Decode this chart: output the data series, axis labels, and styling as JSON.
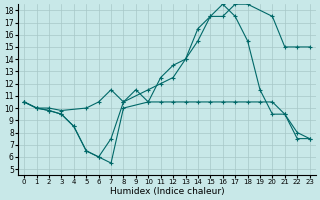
{
  "xlabel": "Humidex (Indice chaleur)",
  "bg_color": "#c8e8e8",
  "grid_color": "#a8c8c8",
  "line_color": "#006868",
  "xlim": [
    -0.5,
    23.5
  ],
  "ylim": [
    4.5,
    18.5
  ],
  "xticks": [
    0,
    1,
    2,
    3,
    4,
    5,
    6,
    7,
    8,
    9,
    10,
    11,
    12,
    13,
    14,
    15,
    16,
    17,
    18,
    19,
    20,
    21,
    22,
    23
  ],
  "yticks": [
    5,
    6,
    7,
    8,
    9,
    10,
    11,
    12,
    13,
    14,
    15,
    16,
    17,
    18
  ],
  "line1_x": [
    0,
    1,
    2,
    3,
    4,
    5,
    6,
    7,
    8,
    9,
    10,
    11,
    12,
    13,
    14,
    15,
    16,
    17,
    18,
    19,
    20,
    21,
    22,
    23
  ],
  "line1_y": [
    10.5,
    10.0,
    9.8,
    9.5,
    8.5,
    6.5,
    6.0,
    7.5,
    10.5,
    11.5,
    10.5,
    10.5,
    10.5,
    10.5,
    10.5,
    10.5,
    10.5,
    10.5,
    10.5,
    10.5,
    10.5,
    9.5,
    8.0,
    7.5
  ],
  "line2_x": [
    0,
    1,
    2,
    3,
    5,
    6,
    7,
    8,
    10,
    11,
    12,
    13,
    14,
    15,
    16,
    17,
    18,
    20,
    21,
    22,
    23
  ],
  "line2_y": [
    10.5,
    10.0,
    10.0,
    9.8,
    10.0,
    10.5,
    11.5,
    10.5,
    11.5,
    12.0,
    12.5,
    14.0,
    15.5,
    17.5,
    17.5,
    18.5,
    18.5,
    17.5,
    15.0,
    15.0,
    15.0
  ],
  "line3_x": [
    0,
    1,
    2,
    3,
    4,
    5,
    6,
    7,
    8,
    10,
    11,
    12,
    13,
    14,
    15,
    16,
    17,
    18,
    19,
    20,
    21,
    22,
    23
  ],
  "line3_y": [
    10.5,
    10.0,
    9.8,
    9.5,
    8.5,
    6.5,
    6.0,
    5.5,
    10.0,
    10.5,
    12.5,
    13.5,
    14.0,
    16.5,
    17.5,
    18.5,
    17.5,
    15.5,
    11.5,
    9.5,
    9.5,
    7.5,
    7.5
  ]
}
